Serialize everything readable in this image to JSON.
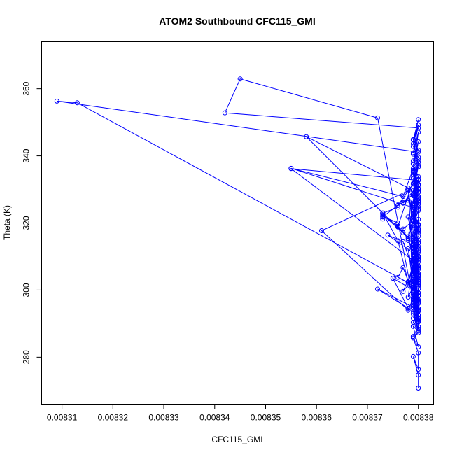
{
  "chart_data": {
    "type": "line",
    "title": "ATOM2 Southbound CFC115_GMI",
    "xlabel": "CFC115_GMI",
    "ylabel": "Theta (K)",
    "xlim": [
      0.008306,
      0.008383
    ],
    "ylim": [
      266,
      374
    ],
    "x_ticks": [
      0.00831,
      0.00832,
      0.00833,
      0.00834,
      0.00835,
      0.00836,
      0.00837,
      0.00838
    ],
    "x_tick_labels": [
      "0.00831",
      "0.00832",
      "0.00833",
      "0.00834",
      "0.00835",
      "0.00836",
      "0.00837",
      "0.00838"
    ],
    "y_ticks": [
      280,
      300,
      320,
      340,
      360
    ],
    "y_tick_labels": [
      "280",
      "300",
      "320",
      "340",
      "360"
    ],
    "grid": false,
    "legend": "none",
    "marker": "open-circle",
    "color": "#0000ff",
    "series": [
      {
        "x": [
          0.00838,
          0.00838,
          0.008379,
          0.00838,
          0.00838,
          0.008379,
          0.00838,
          0.008379,
          0.00838,
          0.008379,
          0.00838,
          0.008379,
          0.00838,
          0.008372,
          0.008378,
          0.008375,
          0.00838,
          0.008379,
          0.008377,
          0.008379,
          0.00838,
          0.008379,
          0.00838,
          0.008379,
          0.008378,
          0.00838,
          0.008379,
          0.00838,
          0.008379,
          0.00838,
          0.008379,
          0.008377,
          0.008374,
          0.00838,
          0.008378,
          0.008379,
          0.00838,
          0.008379,
          0.00838,
          0.008379,
          0.00838,
          0.00838,
          0.008379,
          0.00838,
          0.008379,
          0.00838,
          0.008379,
          0.00838,
          0.008379,
          0.008377,
          0.00838,
          0.008379,
          0.00838,
          0.008379,
          0.008377,
          0.008355,
          0.00838,
          0.008379,
          0.00838,
          0.008379,
          0.00838,
          0.008379,
          0.00838,
          0.008379,
          0.00838,
          0.008376,
          0.008373,
          0.008377,
          0.008379,
          0.00838,
          0.008379,
          0.00838,
          0.008379,
          0.00838,
          0.008379,
          0.00838,
          0.008379,
          0.00838,
          0.008379,
          0.00838,
          0.008379,
          0.00838,
          0.008379,
          0.00838,
          0.008379,
          0.00838,
          0.008378,
          0.008379,
          0.00838,
          0.008379,
          0.008379,
          0.00838,
          0.00838,
          0.008379,
          0.00838,
          0.008378,
          0.008376,
          0.008373,
          0.008358,
          0.008379,
          0.00838,
          0.008379,
          0.00838,
          0.008379,
          0.00838,
          0.008379,
          0.00838,
          0.008379,
          0.00838,
          0.008376,
          0.008373,
          0.008373,
          0.008373,
          0.008376,
          0.008376,
          0.008377,
          0.008379,
          0.008379,
          0.00838,
          0.008379,
          0.00838,
          0.008379,
          0.00838,
          0.008379,
          0.00838,
          0.008379,
          0.00838,
          0.008379,
          0.00838,
          0.008379,
          0.00838,
          0.008378,
          0.008379,
          0.00838,
          0.008379,
          0.00838,
          0.008378,
          0.008379,
          0.00838,
          0.008379,
          0.00838,
          0.008379,
          0.00838,
          0.008379,
          0.00838,
          0.008379,
          0.00838,
          0.008379,
          0.00838,
          0.008379,
          0.00838,
          0.00838,
          0.008379,
          0.00838,
          0.008379,
          0.008378,
          0.008361,
          0.008378,
          0.00838,
          0.008379,
          0.00838,
          0.008379,
          0.00838,
          0.008379,
          0.00838,
          0.008379,
          0.00838,
          0.008379,
          0.00838,
          0.008378,
          0.008373,
          0.008376,
          0.008376,
          0.008377,
          0.008378,
          0.008379,
          0.00838,
          0.008379,
          0.00838,
          0.008379,
          0.00838,
          0.008379,
          0.00838,
          0.008379,
          0.00838,
          0.008379,
          0.00838,
          0.008379,
          0.00838,
          0.008378,
          0.008379,
          0.00838,
          0.008379,
          0.00838,
          0.008379,
          0.00838,
          0.008379,
          0.00838,
          0.008379,
          0.00838,
          0.008379,
          0.00838,
          0.008379,
          0.00838,
          0.008379,
          0.008372,
          0.008345,
          0.008342,
          0.00838,
          0.008379,
          0.00838,
          0.008379,
          0.00838,
          0.008379,
          0.00838,
          0.008379,
          0.00838,
          0.008379,
          0.00838,
          0.008309,
          0.008313,
          0.008378,
          0.00838,
          0.008379,
          0.008379,
          0.008355,
          0.00838,
          0.008379,
          0.00838,
          0.008379,
          0.00838,
          0.008379,
          0.00838,
          0.008379,
          0.00838,
          0.008379,
          0.00838,
          0.008379,
          0.00838,
          0.008379,
          0.00838,
          0.008379,
          0.00838,
          0.008379,
          0.00838,
          0.008379,
          0.008376,
          0.008377,
          0.008379,
          0.00838,
          0.008379,
          0.00838,
          0.008379,
          0.00838,
          0.008379,
          0.00838
        ],
        "y": [
          270.8,
          274.7,
          280.2,
          276.4,
          281.3,
          285.7,
          283.1,
          289.2,
          287.8,
          292.9,
          290.5,
          296.4,
          294.1,
          300.3,
          294.6,
          303.5,
          299.2,
          303.4,
          299.6,
          306.6,
          302.2,
          304.7,
          301.1,
          308.6,
          297.9,
          304.2,
          296.3,
          309.1,
          305.0,
          311.2,
          306.3,
          314.4,
          316.4,
          310.0,
          321.8,
          313.5,
          318.0,
          315.9,
          319.3,
          322.4,
          317.5,
          324.8,
          320.8,
          327.5,
          323.0,
          330.0,
          326.3,
          332.9,
          328.7,
          325.9,
          331.4,
          334.3,
          329.4,
          336.2,
          327.9,
          336.3,
          324.1,
          335.0,
          338.9,
          340.5,
          339.6,
          342.8,
          341.7,
          344.9,
          337.2,
          319.0,
          322.4,
          317.1,
          313.6,
          306.7,
          310.1,
          304.6,
          307.9,
          302.1,
          300.3,
          298.2,
          303.6,
          297.1,
          300.8,
          296.3,
          302.5,
          291.5,
          299.3,
          293.8,
          297.4,
          290.6,
          312.3,
          304.3,
          308.4,
          310.7,
          313.1,
          307.2,
          305.0,
          315.2,
          309.8,
          302.5,
          314.7,
          323.0,
          345.7,
          329.7,
          325.6,
          331.8,
          327.2,
          333.4,
          329.1,
          335.4,
          331.2,
          337.6,
          333.8,
          325.3,
          321.8,
          321.2,
          322.0,
          320.0,
          318.8,
          318.2,
          320.7,
          323.8,
          326.2,
          322.1,
          327.9,
          324.6,
          330.3,
          325.5,
          331.5,
          328.1,
          333.0,
          329.7,
          336.7,
          331.6,
          338.1,
          315.4,
          320.4,
          314.8,
          312.4,
          310.1,
          314.8,
          311.5,
          306.6,
          309.3,
          301.5,
          305.9,
          298.4,
          302.5,
          296.8,
          300.9,
          294.5,
          297.2,
          291.1,
          293.6,
          288.4,
          300.4,
          294.6,
          290.8,
          297.6,
          294.0,
          317.7,
          329.6,
          313.0,
          308.9,
          311.7,
          305.7,
          309.4,
          303.1,
          306.2,
          298.6,
          303.6,
          299.8,
          302.6,
          315.9,
          322.9,
          324.7,
          325.2,
          326.1,
          326.8,
          323.9,
          319.6,
          321.8,
          317.0,
          319.3,
          314.0,
          316.6,
          312.3,
          313.9,
          309.8,
          311.2,
          307.1,
          309.3,
          304.3,
          330.4,
          306.0,
          303.0,
          301.7,
          299.1,
          297.7,
          294.5,
          296.1,
          292.6,
          295.4,
          291.8,
          299.4,
          296.0,
          297.6,
          292.6,
          296.9,
          351.3,
          362.9,
          352.8,
          348.3,
          344.7,
          350.8,
          343.6,
          349.2,
          340.9,
          347.0,
          335.7,
          344.2,
          338.5,
          341.1,
          356.3,
          355.8,
          302.2,
          314.1,
          306.2,
          308.8,
          336.2,
          332.7,
          328.5,
          330.1,
          325.8,
          326.6,
          320.7,
          323.7,
          319.2,
          321.1,
          316.8,
          318.4,
          314.9,
          316.0,
          312.7,
          314.2,
          308.8,
          312.2,
          306.0,
          304.6,
          301.3,
          303.8,
          306.7,
          298.7,
          296.4,
          291.6,
          293.7,
          290.4,
          289.1,
          286.2,
          287.3
        ]
      }
    ]
  }
}
